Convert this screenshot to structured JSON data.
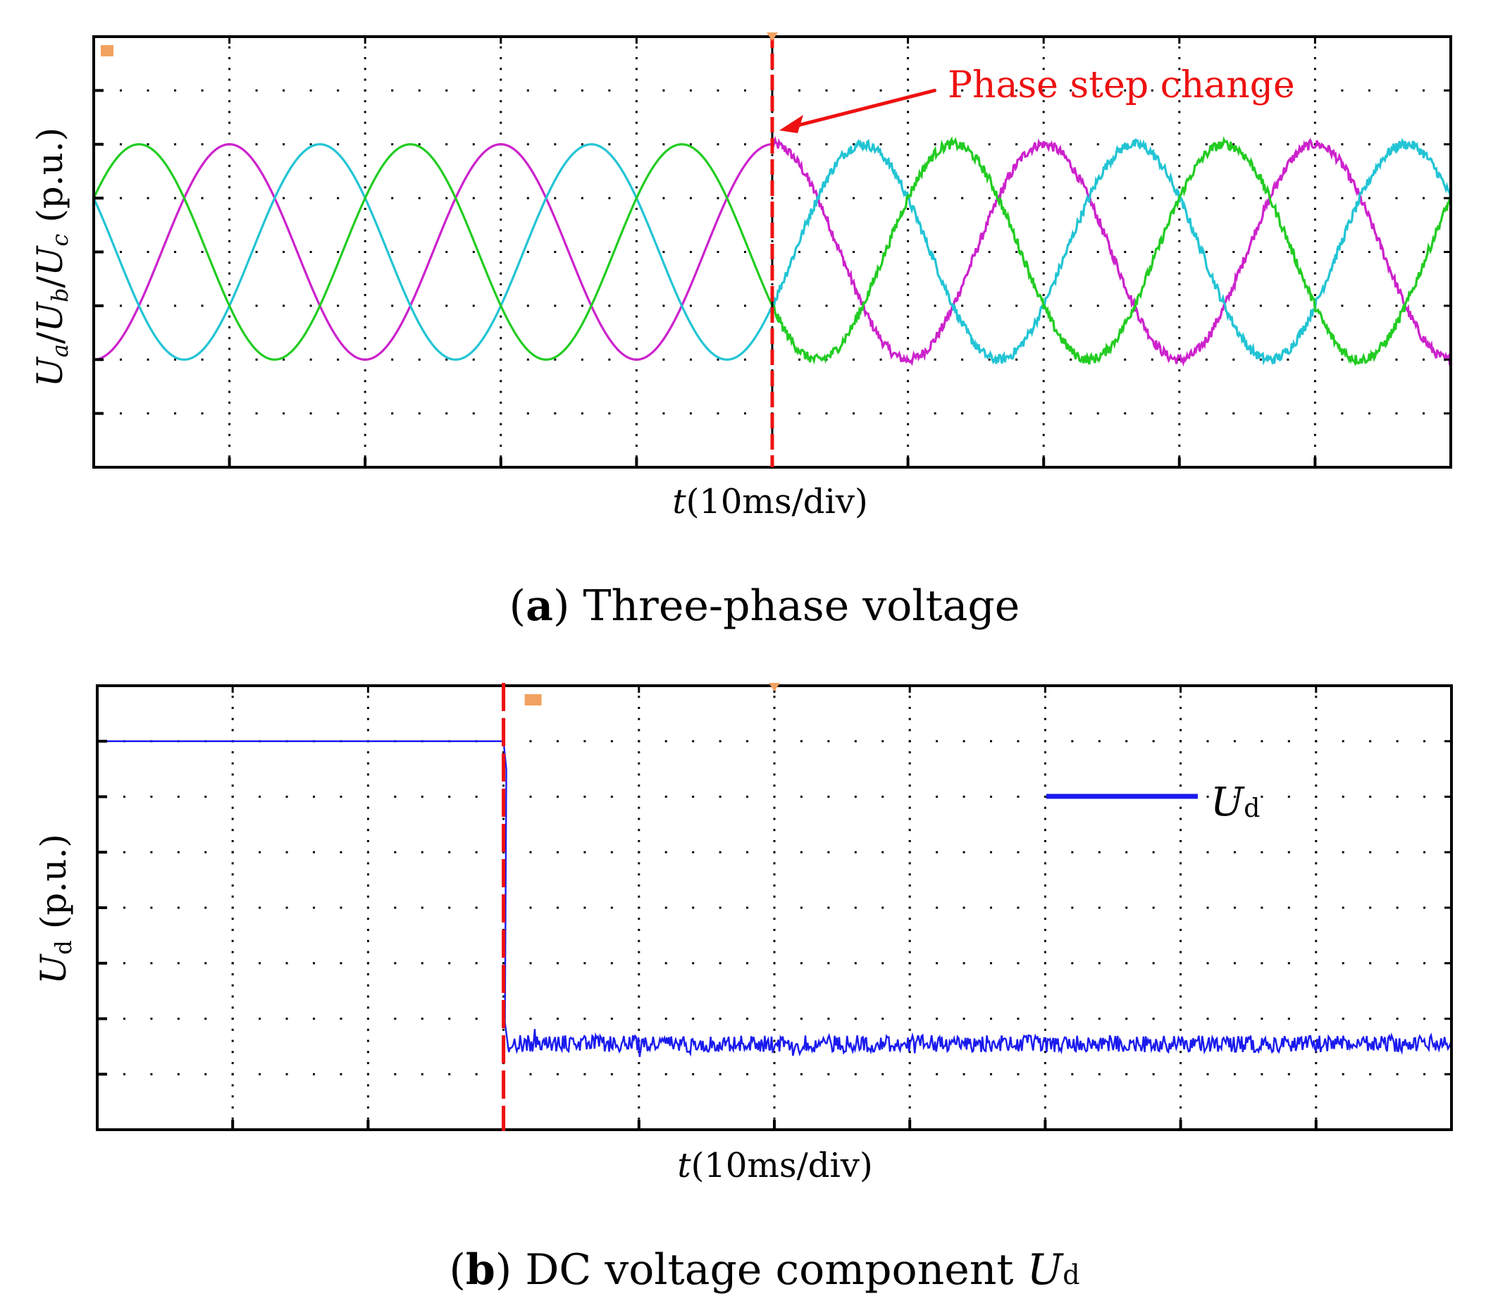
{
  "colors": {
    "phase_a": "#cc22cc",
    "phase_b": "#22c4d4",
    "phase_c": "#22cc22",
    "dc": "#1a1aee",
    "marker": "#ee1111",
    "trigger": "#f2a260",
    "grid": "#000000"
  },
  "chart_data": [
    {
      "panel": "a",
      "type": "line",
      "caption_letter": "a",
      "caption_open": "(",
      "caption_close": ")",
      "caption_rest": " Three-phase voltage",
      "title": "Three-phase voltage",
      "ylabel_parts": {
        "u1": "U",
        "s1": "a",
        "sep1": "/",
        "u2": "U",
        "s2": "b",
        "sep2": "/",
        "u3": "U",
        "s3": "c",
        "unit": " (p.u.)"
      },
      "xlabel_var": "t",
      "xlabel_rest": "(10ms/div)",
      "x_div_ms": 10,
      "x_divisions": 10,
      "y_divisions": 8,
      "xlim_ms": [
        0,
        100
      ],
      "amplitude_pu": 1.0,
      "frequency_hz": 50,
      "step_time_ms": 50,
      "series": [
        {
          "phase": "a",
          "color_key": "phase_a",
          "phase_before_deg": 180,
          "phase_after_deg": 0,
          "noise_after": true
        },
        {
          "phase": "b",
          "color_key": "phase_b",
          "phase_before_deg": 60,
          "phase_after_deg": -120,
          "noise_after": true
        },
        {
          "phase": "c",
          "color_key": "phase_c",
          "phase_before_deg": -60,
          "phase_after_deg": 120,
          "noise_after": true
        }
      ],
      "annotation": {
        "text": "Phase step change",
        "x_ms": 50,
        "color_key": "marker"
      }
    },
    {
      "panel": "b",
      "type": "line",
      "caption_letter": "b",
      "caption_open": "(",
      "caption_close": ")",
      "caption_rest": " DC voltage component ",
      "caption_var": "U",
      "caption_sub": "d",
      "title": "DC voltage component Ud",
      "ylabel_parts": {
        "u1": "U",
        "s1": "d",
        "unit": " (p.u.)"
      },
      "xlabel_var": "t",
      "xlabel_rest": "(10ms/div)",
      "x_div_ms": 10,
      "x_divisions": 10,
      "y_divisions": 8,
      "xlim_ms": [
        0,
        100
      ],
      "ylim_div": [
        0,
        8
      ],
      "step_time_ms": 30,
      "series": [
        {
          "name_var": "U",
          "name_sub": "d",
          "color_key": "dc",
          "level_before_div": 7.0,
          "level_after_div": 1.55,
          "noisy_after": true
        }
      ],
      "legend": {
        "placement": "top-right"
      },
      "marker_x_ms": 30
    }
  ]
}
